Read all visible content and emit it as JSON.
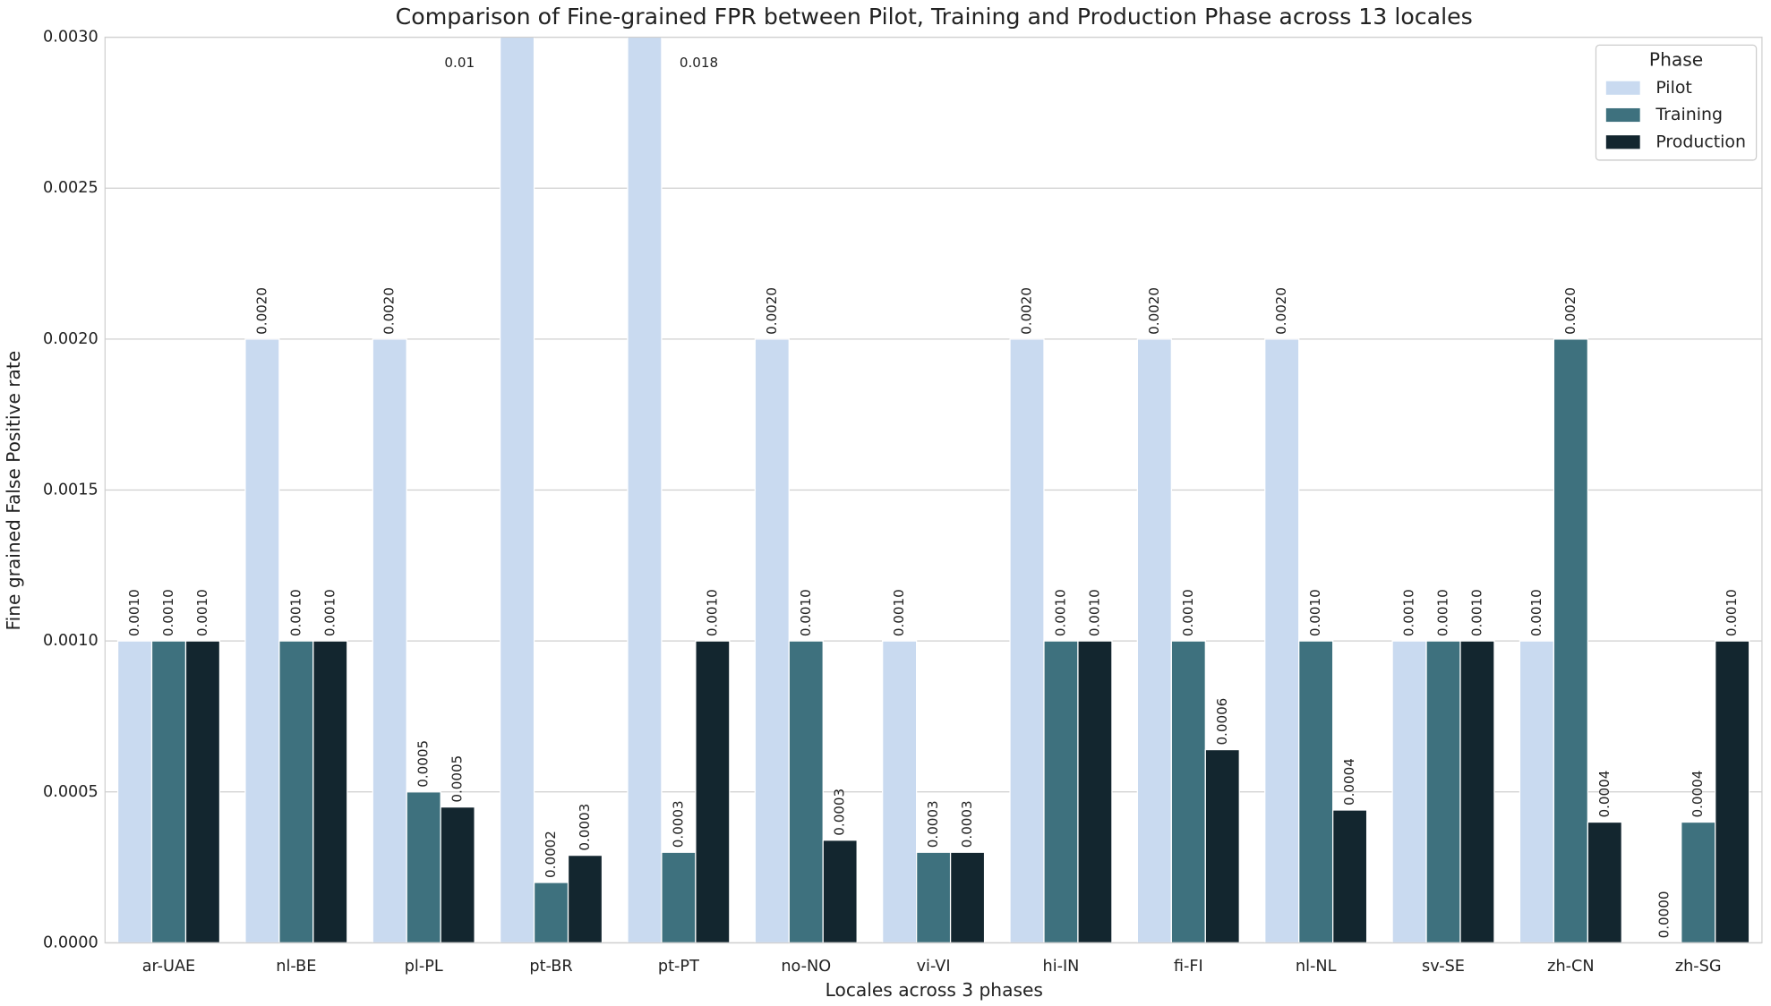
{
  "chart_data": {
    "type": "bar",
    "title": "Comparison of Fine-grained FPR between Pilot, Training and Production Phase across 13 locales",
    "x_label": "Locales across 3 phases",
    "y_label": "Fine grained False Positive rate",
    "categories": [
      "ar-UAE",
      "nl-BE",
      "pl-PL",
      "pt-BR",
      "pt-PT",
      "no-NO",
      "vi-VI",
      "hi-IN",
      "fi-FI",
      "nl-NL",
      "sv-SE",
      "zh-CN",
      "zh-SG"
    ],
    "legend_title": "Phase",
    "legend": "upper right",
    "grid": true,
    "ylim": [
      0,
      0.003
    ],
    "yticks": [
      {
        "value": 0,
        "label": "0.0000"
      },
      {
        "value": 0.0005,
        "label": "0.0005"
      },
      {
        "value": 0.001,
        "label": "0.0010"
      },
      {
        "value": 0.0015,
        "label": "0.0015"
      },
      {
        "value": 0.002,
        "label": "0.0020"
      },
      {
        "value": 0.0025,
        "label": "0.0025"
      },
      {
        "value": 0.003,
        "label": "0.0030"
      }
    ],
    "series": [
      {
        "name": "Pilot",
        "color": "#c9daf0",
        "values": [
          0.001,
          0.002,
          0.002,
          0.01,
          0.018,
          0.002,
          0.001,
          0.002,
          0.002,
          0.002,
          0.001,
          0.001,
          0
        ],
        "value_labels": [
          "0.0010",
          "0.0020",
          "0.0020",
          "0.01",
          "0.018",
          "0.0020",
          "0.0010",
          "0.0020",
          "0.0020",
          "0.0020",
          "0.0010",
          "0.0010",
          "0.0000"
        ]
      },
      {
        "name": "Training",
        "color": "#3e717e",
        "values": [
          0.001,
          0.001,
          0.0005,
          0.0002,
          0.0003,
          0.001,
          0.0003,
          0.001,
          0.001,
          0.001,
          0.001,
          0.002,
          0.0004
        ],
        "value_labels": [
          "0.0010",
          "0.0010",
          "0.0005",
          "0.0002",
          "0.0003",
          "0.0010",
          "0.0003",
          "0.0010",
          "0.0010",
          "0.0010",
          "0.0010",
          "0.0020",
          "0.0004"
        ]
      },
      {
        "name": "Production",
        "color": "#13262f",
        "values": [
          0.001,
          0.001,
          0.00045,
          0.00029,
          0.001,
          0.00034,
          0.0003,
          0.001,
          0.00064,
          0.00044,
          0.001,
          0.0004,
          0.001
        ],
        "value_labels": [
          "0.0010",
          "0.0010",
          "0.0005",
          "0.0003",
          "0.0010",
          "0.0003",
          "0.0003",
          "0.0010",
          "0.0006",
          "0.0004",
          "0.0010",
          "0.0004",
          "0.0010"
        ]
      }
    ]
  }
}
